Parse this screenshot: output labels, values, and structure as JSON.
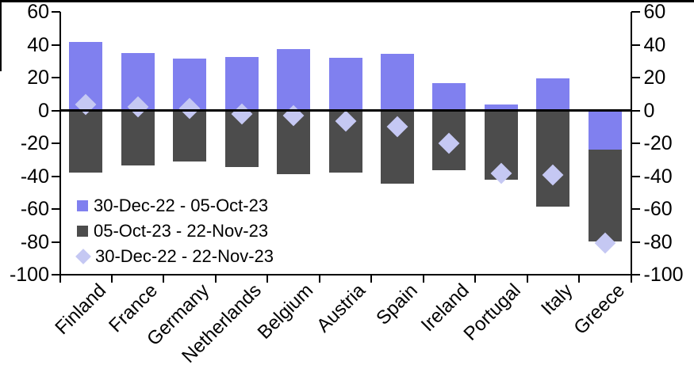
{
  "page": {
    "background": "#FFFFFF"
  },
  "chart_data": {
    "type": "bar",
    "stacked": true,
    "title": "",
    "xlabel": "",
    "ylabel": "",
    "categories": [
      "Finland",
      "France",
      "Germany",
      "Netherlands",
      "Belgium",
      "Austria",
      "Spain",
      "Ireland",
      "Portugal",
      "Italy",
      "Greece"
    ],
    "series": [
      {
        "name": "30-Dec-22 - 05-Oct-23",
        "kind": "bar",
        "color": "#8080EF",
        "values": [
          41.5,
          35,
          31.5,
          32.5,
          37.5,
          32,
          34.5,
          16.5,
          3.5,
          19.5,
          -24
        ]
      },
      {
        "name": "05-Oct-23 - 22-Nov-23",
        "kind": "bar",
        "color": "#4C4C4C",
        "values": [
          -38,
          -33.5,
          -31,
          -34.5,
          -39,
          -38,
          -44.5,
          -36.5,
          -42,
          -58.5,
          -56
        ]
      },
      {
        "name": "30-Dec-22 - 22-Nov-23",
        "kind": "diamond-marker",
        "color": "#C5C8F3",
        "values": [
          3.5,
          2,
          1,
          -2,
          -3,
          -6.5,
          -10,
          -20,
          -38.5,
          -39.5,
          -80.5
        ]
      }
    ],
    "ylim": [
      -100,
      60
    ],
    "yticks": [
      60,
      40,
      20,
      0,
      -20,
      -40,
      -60,
      -80,
      -100
    ],
    "y_axis_sides": "both",
    "grid": false,
    "zero_line": true,
    "legend_position": "inside-lower-left",
    "axis_color": "#000000"
  }
}
